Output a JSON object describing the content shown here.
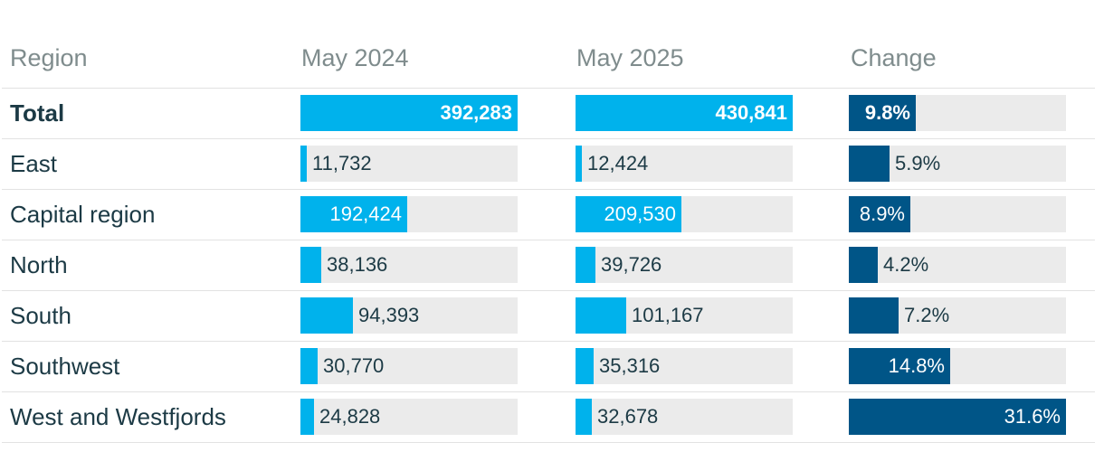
{
  "colors": {
    "light_blue": "#00b2ec",
    "dark_blue": "#005587",
    "track": "#ebebeb",
    "text": "#1c3a45",
    "header": "#7f8c8d"
  },
  "headers": {
    "region": "Region",
    "c1": "May 2024",
    "c2": "May 2025",
    "c3": "Change"
  },
  "chart_data": {
    "type": "table",
    "columns": [
      "Region",
      "May 2024",
      "May 2025",
      "Change"
    ],
    "ranges": {
      "May 2024": [
        0,
        392283
      ],
      "May 2025": [
        0,
        430841
      ],
      "Change": [
        0,
        31.6
      ]
    },
    "rows": [
      {
        "region": "Total",
        "may2024": 392283,
        "may2024_label": "392,283",
        "may2025": 430841,
        "may2025_label": "430,841",
        "change": 9.8,
        "change_label": "9.8%",
        "bold": true
      },
      {
        "region": "East",
        "may2024": 11732,
        "may2024_label": "11,732",
        "may2025": 12424,
        "may2025_label": "12,424",
        "change": 5.9,
        "change_label": "5.9%"
      },
      {
        "region": "Capital region",
        "may2024": 192424,
        "may2024_label": "192,424",
        "may2025": 209530,
        "may2025_label": "209,530",
        "change": 8.9,
        "change_label": "8.9%"
      },
      {
        "region": "North",
        "may2024": 38136,
        "may2024_label": "38,136",
        "may2025": 39726,
        "may2025_label": "39,726",
        "change": 4.2,
        "change_label": "4.2%"
      },
      {
        "region": "South",
        "may2024": 94393,
        "may2024_label": "94,393",
        "may2025": 101167,
        "may2025_label": "101,167",
        "change": 7.2,
        "change_label": "7.2%"
      },
      {
        "region": "Southwest",
        "may2024": 30770,
        "may2024_label": "30,770",
        "may2025": 35316,
        "may2025_label": "35,316",
        "change": 14.8,
        "change_label": "14.8%"
      },
      {
        "region": "West and Westfjords",
        "may2024": 24828,
        "may2024_label": "24,828",
        "may2025": 32678,
        "may2025_label": "32,678",
        "change": 31.6,
        "change_label": "31.6%"
      }
    ]
  }
}
